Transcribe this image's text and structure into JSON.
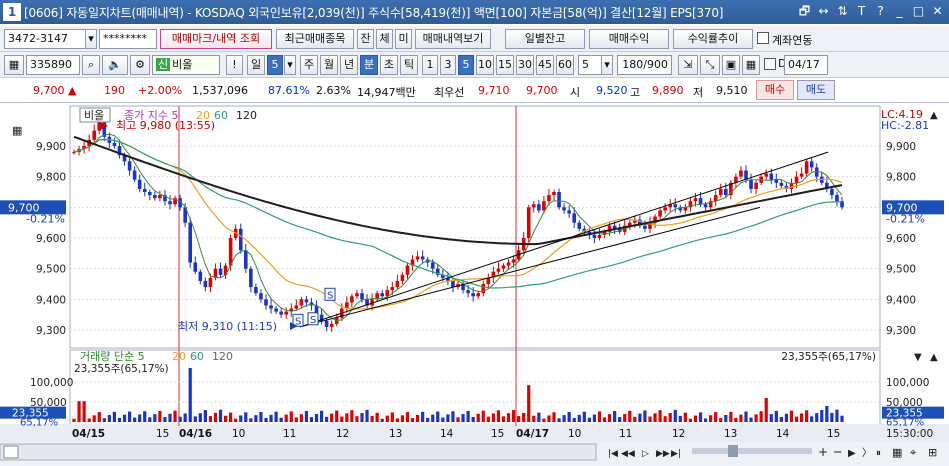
{
  "window": {
    "index": "1",
    "title": "[0606] 자동일지차트(매매내역) - KOSDAQ 외국인보유[2,039(천)] 주식수[58,419(천)] 액면[100] 자본금[58(억)] 결산[12월] EPS[370]",
    "controls": [
      "🗗",
      "↔",
      "⇅",
      "T",
      "?",
      "_",
      "□",
      "✕"
    ]
  },
  "toolbar1": {
    "account": "3472-3147",
    "password": "********",
    "buttons": [
      "매매마크/내역 조회",
      "최근매매종목",
      "잔",
      "체",
      "미",
      "매매내역보기"
    ],
    "right_buttons": [
      "일별잔고",
      "매매수익",
      "수익률추이"
    ],
    "checkbox_label": "계좌연동"
  },
  "toolbar2": {
    "code": "335890",
    "name": "비올",
    "excl": "!",
    "period_label": "일",
    "period_value": "5",
    "periods": [
      "주",
      "월",
      "년",
      "분",
      "초",
      "틱"
    ],
    "intervals": [
      "1",
      "3",
      "5",
      "10",
      "15",
      "30",
      "45",
      "60"
    ],
    "count": "5",
    "range": "180/900",
    "checkbox_label": "D",
    "date": "04/17"
  },
  "quote": {
    "price": "9,700",
    "change_arrow": "▲",
    "change": "190",
    "change_pct": "+2.00%",
    "volume": "1,537,096",
    "vol_ratio": "87.61%",
    "turnover": "2.63%",
    "amount": "14,947백만",
    "best_ask_label": "최우선",
    "best_ask": "9,710",
    "best_bid": "9,700",
    "open_label": "시",
    "open": "9,520",
    "high_label": "고",
    "high": "9,890",
    "low_label": "저",
    "low": "9,510",
    "buy": "매수",
    "sell": "매도"
  },
  "chart": {
    "legend_name": "비올",
    "legend_ma": "종가 지수 5",
    "legend_ma20": "20",
    "legend_ma60": "60",
    "legend_ma120": "120",
    "high_note": "최고 9,980 (13:55)",
    "low_note": "최저 9,310 (11:15)",
    "lc": "LC:4.19",
    "hc": "HC:-2.81",
    "price_left": "9,700",
    "pct_left": "-0.21%",
    "price_right": "9,700",
    "pct_right": "-0.21%",
    "y_ticks": [
      "9,900",
      "9,800",
      "9,700",
      "9,600",
      "9,500",
      "9,400",
      "9,300"
    ],
    "vol_legend": "거래량 단순 5",
    "vol_ma20": "20",
    "vol_ma60": "60",
    "vol_ma120": "120",
    "vol_info_left": "23,355주(65,17%)",
    "vol_info_right": "23,355주(65,17%)",
    "vol_ticks": [
      "100,000",
      "50,000"
    ],
    "vol_value": "23,355",
    "vol_pct": "65,17%",
    "x_labels": [
      "04/15",
      "15",
      "04/16",
      "10",
      "11",
      "12",
      "13",
      "14",
      "15",
      "04/17",
      "10",
      "11",
      "12",
      "13",
      "14",
      "15"
    ],
    "time": "15:30:00",
    "colors": {
      "up": "#e00000",
      "down": "#1a33cc",
      "ma5": "#3b8a3b",
      "ma20": "#f0a020",
      "ma60": "#30a070",
      "ma120": "#1e1e1e",
      "trend": "#000000"
    }
  }
}
